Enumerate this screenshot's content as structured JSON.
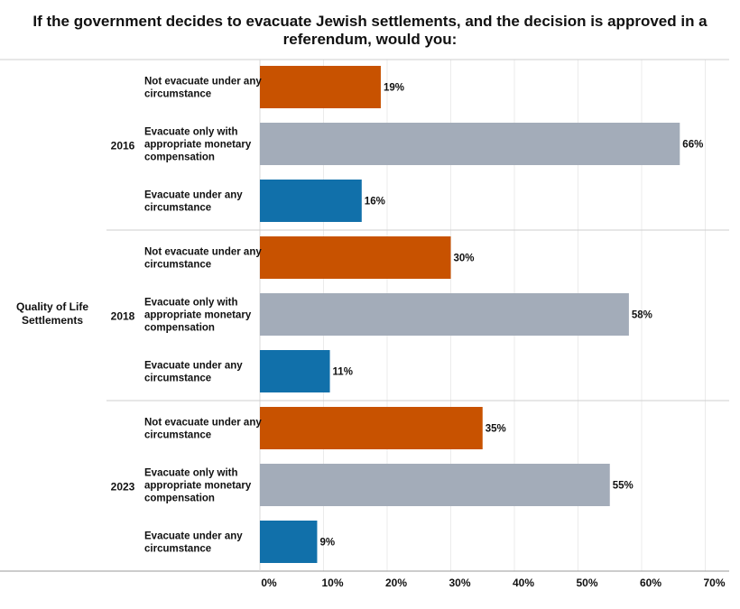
{
  "chart_data": {
    "type": "bar",
    "title": "If the government decides to evacuate Jewish settlements, and the decision is approved in a referendum, would you:",
    "row_header": "Quality of Life Settlements",
    "groups": [
      {
        "year": "2016",
        "bars": [
          {
            "label": "Not evacuate under any circumstance",
            "value": 19,
            "value_label": "19%"
          },
          {
            "label": "Evacuate only with appropriate monetary compensation",
            "value": 66,
            "value_label": "66%"
          },
          {
            "label": "Evacuate under any circumstance",
            "value": 16,
            "value_label": "16%"
          }
        ]
      },
      {
        "year": "2018",
        "bars": [
          {
            "label": "Not evacuate under any circumstance",
            "value": 30,
            "value_label": "30%"
          },
          {
            "label": "Evacuate only with appropriate monetary compensation",
            "value": 58,
            "value_label": "58%"
          },
          {
            "label": "Evacuate under any circumstance",
            "value": 11,
            "value_label": "11%"
          }
        ]
      },
      {
        "year": "2023",
        "bars": [
          {
            "label": "Not evacuate under any circumstance",
            "value": 35,
            "value_label": "35%"
          },
          {
            "label": "Evacuate only with appropriate monetary compensation",
            "value": 55,
            "value_label": "55%"
          },
          {
            "label": "Evacuate under any circumstance",
            "value": 9,
            "value_label": "9%"
          }
        ]
      }
    ],
    "category_colors": {
      "Not evacuate under any circumstance": "#c85200",
      "Evacuate only with appropriate monetary compensation": "#a3acb9",
      "Evacuate under any circumstance": "#1170aa"
    },
    "xlim": [
      0,
      70
    ],
    "x_ticks": [
      0,
      10,
      20,
      30,
      40,
      50,
      60,
      70
    ],
    "x_tick_labels": [
      "0%",
      "10%",
      "20%",
      "30%",
      "40%",
      "50%",
      "60%",
      "70%"
    ],
    "grid": true,
    "legend": "none"
  }
}
